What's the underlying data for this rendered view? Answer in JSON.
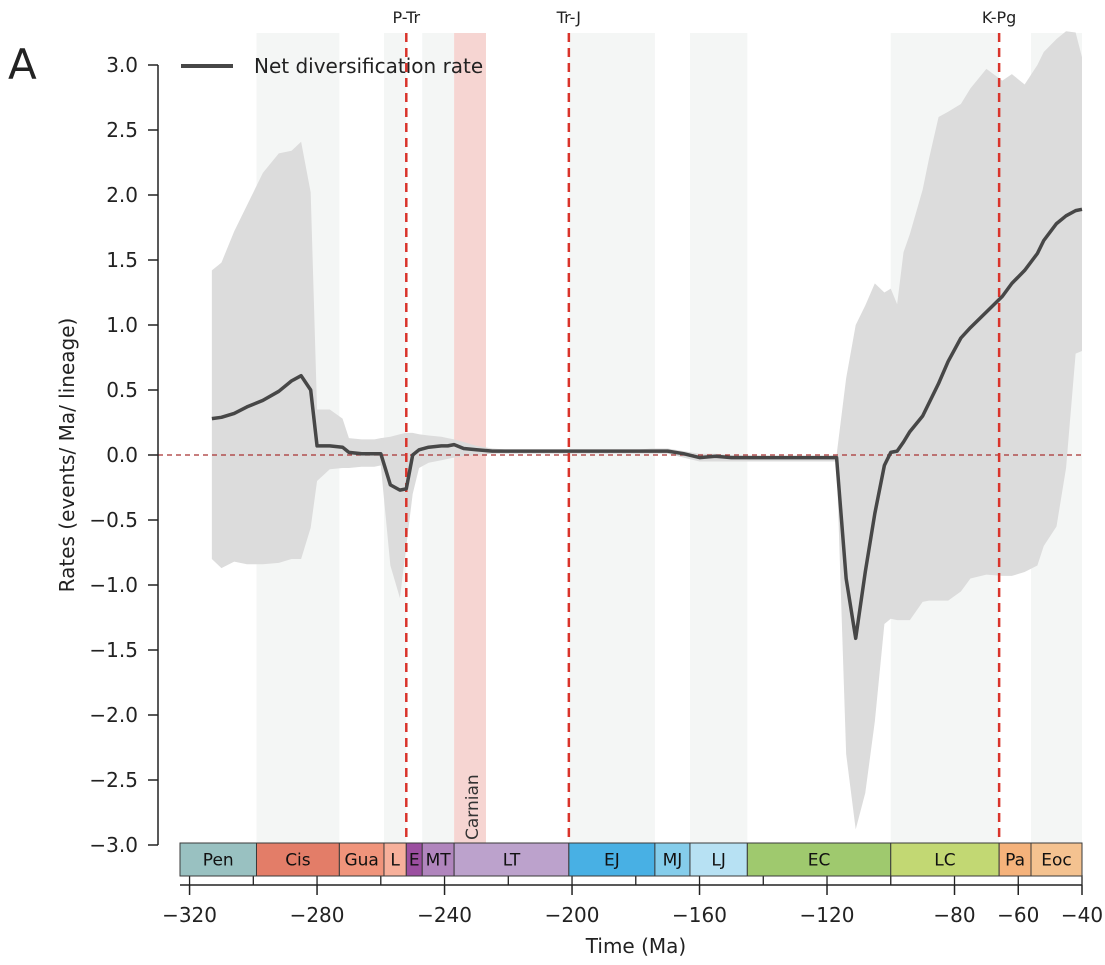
{
  "panel_label": "A",
  "chart_data": {
    "type": "line",
    "title": "",
    "xlabel": "Time (Ma)",
    "ylabel": "Rates (events/ Ma/ lineage)",
    "xlim": [
      -326,
      -40
    ],
    "ylim": [
      -3.0,
      3.0
    ],
    "xticks": [
      -320,
      -280,
      -240,
      -200,
      -160,
      -120,
      -80,
      -60,
      -40
    ],
    "xtick_labels": [
      "−320",
      "−280",
      "−240",
      "−200",
      "−160",
      "−120",
      "−80",
      "−60",
      "−40"
    ],
    "yticks": [
      3.0,
      2.5,
      2.0,
      1.5,
      1.0,
      0.5,
      0.0,
      -0.5,
      -1.0,
      -1.5,
      -2.0,
      -2.5,
      -3.0
    ],
    "ytick_labels": [
      "3.0",
      "2.5",
      "2.0",
      "1.5",
      "1.0",
      "0.5",
      "0.0",
      "−0.5",
      "−1.0",
      "−1.5",
      "−2.0",
      "−2.5",
      "−3.0"
    ],
    "legend": {
      "position": "top-left",
      "entries": [
        {
          "name": "Net diversification rate",
          "color": "#474747"
        }
      ]
    },
    "series": [
      {
        "name": "Net diversification rate",
        "color": "#474747",
        "x": [
          -313,
          -310,
          -306,
          -302,
          -297,
          -292,
          -288,
          -285,
          -282,
          -280,
          -276,
          -272,
          -270,
          -266,
          -262,
          -260,
          -257,
          -254,
          -252,
          -250,
          -248,
          -245,
          -241,
          -239,
          -237,
          -234,
          -230,
          -225,
          -220,
          -210,
          -200,
          -190,
          -180,
          -175,
          -170,
          -165,
          -160,
          -155,
          -150,
          -140,
          -130,
          -120,
          -117,
          -114,
          -111,
          -108,
          -105,
          -102,
          -100,
          -98,
          -96,
          -94,
          -90,
          -88,
          -85,
          -82,
          -78,
          -75,
          -70,
          -65,
          -62,
          -58,
          -54,
          -52,
          -48,
          -45,
          -42,
          -40
        ],
        "y": [
          0.28,
          0.29,
          0.32,
          0.37,
          0.42,
          0.49,
          0.57,
          0.61,
          0.5,
          0.07,
          0.07,
          0.06,
          0.02,
          0.01,
          0.01,
          0.01,
          -0.23,
          -0.27,
          -0.26,
          0.0,
          0.04,
          0.06,
          0.07,
          0.07,
          0.08,
          0.05,
          0.04,
          0.03,
          0.03,
          0.03,
          0.03,
          0.03,
          0.03,
          0.03,
          0.03,
          0.01,
          -0.02,
          -0.01,
          -0.02,
          -0.02,
          -0.02,
          -0.02,
          -0.02,
          -0.95,
          -1.41,
          -0.9,
          -0.45,
          -0.08,
          0.02,
          0.03,
          0.1,
          0.18,
          0.3,
          0.4,
          0.55,
          0.72,
          0.9,
          0.98,
          1.1,
          1.22,
          1.32,
          1.42,
          1.55,
          1.65,
          1.78,
          1.84,
          1.88,
          1.89
        ]
      }
    ],
    "confidence_band": {
      "color": "#dcdcdc",
      "x": [
        -313,
        -310,
        -306,
        -302,
        -297,
        -292,
        -288,
        -285,
        -282,
        -280,
        -276,
        -272,
        -270,
        -266,
        -262,
        -260,
        -257,
        -254,
        -252,
        -250,
        -248,
        -245,
        -241,
        -239,
        -237,
        -234,
        -230,
        -225,
        -220,
        -210,
        -200,
        -190,
        -180,
        -175,
        -170,
        -165,
        -160,
        -155,
        -150,
        -140,
        -130,
        -120,
        -117,
        -114,
        -111,
        -108,
        -105,
        -102,
        -100,
        -98,
        -96,
        -94,
        -90,
        -88,
        -85,
        -82,
        -78,
        -75,
        -70,
        -65,
        -62,
        -58,
        -54,
        -52,
        -48,
        -45,
        -42,
        -40
      ],
      "upper": [
        1.42,
        1.48,
        1.72,
        1.92,
        2.17,
        2.32,
        2.34,
        2.41,
        2.02,
        0.35,
        0.35,
        0.28,
        0.13,
        0.12,
        0.12,
        0.13,
        0.14,
        0.16,
        0.17,
        0.17,
        0.16,
        0.15,
        0.14,
        0.13,
        0.12,
        0.1,
        0.07,
        0.05,
        0.04,
        0.04,
        0.04,
        0.04,
        0.04,
        0.05,
        0.05,
        0.03,
        0.01,
        0.01,
        0.0,
        -0.01,
        -0.01,
        -0.01,
        0.0,
        0.59,
        1.0,
        1.15,
        1.32,
        1.25,
        1.28,
        1.16,
        1.56,
        1.7,
        2.04,
        2.28,
        2.6,
        2.64,
        2.7,
        2.82,
        2.97,
        2.88,
        2.93,
        2.85,
        3.0,
        3.1,
        3.2,
        3.26,
        3.25,
        3.06
      ],
      "lower": [
        -0.8,
        -0.87,
        -0.82,
        -0.84,
        -0.84,
        -0.83,
        -0.8,
        -0.8,
        -0.56,
        -0.2,
        -0.11,
        -0.1,
        -0.1,
        -0.09,
        -0.09,
        -0.08,
        -0.85,
        -1.1,
        -0.7,
        -0.3,
        -0.1,
        -0.06,
        -0.04,
        -0.03,
        -0.02,
        -0.01,
        0.0,
        0.01,
        0.01,
        0.01,
        0.01,
        0.01,
        0.01,
        0.01,
        0.01,
        -0.02,
        -0.05,
        -0.05,
        -0.05,
        -0.05,
        -0.05,
        -0.05,
        -0.05,
        -2.3,
        -2.88,
        -2.6,
        -2.05,
        -1.3,
        -1.26,
        -1.27,
        -1.27,
        -1.27,
        -1.13,
        -1.12,
        -1.12,
        -1.12,
        -1.05,
        -0.95,
        -0.92,
        -0.93,
        -0.93,
        -0.9,
        -0.85,
        -0.7,
        -0.55,
        -0.1,
        0.78,
        0.8
      ]
    },
    "zero_line": {
      "y": 0.0,
      "color": "#a83232",
      "style": "dashed"
    },
    "event_lines": [
      {
        "x": -252,
        "label": "P-Tr",
        "color": "#d9342b"
      },
      {
        "x": -201,
        "label": "Tr-J",
        "color": "#d9342b"
      },
      {
        "x": -66,
        "label": "K-Pg",
        "color": "#d9342b"
      }
    ],
    "shaded_bands": [
      {
        "x0": -299,
        "x1": -273,
        "color": "#f4f6f5"
      },
      {
        "x0": -259,
        "x1": -252,
        "color": "#f4f6f5"
      },
      {
        "x0": -247,
        "x1": -237,
        "color": "#f4f6f5"
      },
      {
        "x0": -201,
        "x1": -174,
        "color": "#f4f6f5"
      },
      {
        "x0": -163,
        "x1": -145,
        "color": "#f4f6f5"
      },
      {
        "x0": -100,
        "x1": -66,
        "color": "#f4f6f5"
      },
      {
        "x0": -56,
        "x1": -40,
        "color": "#f4f6f5"
      }
    ],
    "carnian_band": {
      "x0": -237,
      "x1": -227,
      "label": "Carnian",
      "color": "#f6d5d2"
    },
    "timescale": [
      {
        "label": "Pen",
        "x0": -323,
        "x1": -299,
        "color": "#99c1c1"
      },
      {
        "label": "Cis",
        "x0": -299,
        "x1": -273,
        "color": "#e37d68"
      },
      {
        "label": "Gua",
        "x0": -273,
        "x1": -259,
        "color": "#f0947b"
      },
      {
        "label": "L",
        "x0": -259,
        "x1": -252,
        "color": "#f7b09b"
      },
      {
        "label": "E",
        "x0": -252,
        "x1": -247,
        "color": "#9b4fa0"
      },
      {
        "label": "MT",
        "x0": -247,
        "x1": -237,
        "color": "#b085bd"
      },
      {
        "label": "LT",
        "x0": -237,
        "x1": -201,
        "color": "#bca2cc"
      },
      {
        "label": "EJ",
        "x0": -201,
        "x1": -174,
        "color": "#48b0e4"
      },
      {
        "label": "MJ",
        "x0": -174,
        "x1": -163,
        "color": "#85cdeb"
      },
      {
        "label": "LJ",
        "x0": -163,
        "x1": -145,
        "color": "#b7e1f3"
      },
      {
        "label": "EC",
        "x0": -145,
        "x1": -100,
        "color": "#9fc96e"
      },
      {
        "label": "LC",
        "x0": -100,
        "x1": -66,
        "color": "#c2d873"
      },
      {
        "label": "Pa",
        "x0": -66,
        "x1": -56,
        "color": "#f5b27b"
      },
      {
        "label": "Eoc",
        "x0": -56,
        "x1": -40,
        "color": "#f4c290"
      }
    ]
  }
}
